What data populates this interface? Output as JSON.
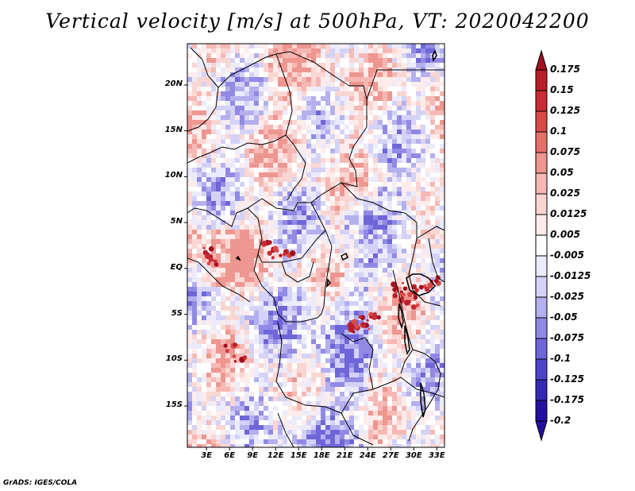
{
  "title": "Vertical velocity [m/s] at 500hPa, VT: 2020042200",
  "credit": "GrADS: IGES/COLA",
  "map": {
    "lat_range": [
      -19.5,
      24.5
    ],
    "lon_range": [
      0.5,
      34
    ],
    "lat_ticks": [
      {
        "value": 20,
        "label": "20N"
      },
      {
        "value": 15,
        "label": "15N"
      },
      {
        "value": 10,
        "label": "10N"
      },
      {
        "value": 5,
        "label": "5N"
      },
      {
        "value": 0,
        "label": "EQ"
      },
      {
        "value": -5,
        "label": "5S"
      },
      {
        "value": -10,
        "label": "10S"
      },
      {
        "value": -15,
        "label": "15S"
      }
    ],
    "lon_ticks": [
      {
        "value": 3,
        "label": "3E"
      },
      {
        "value": 6,
        "label": "6E"
      },
      {
        "value": 9,
        "label": "9E"
      },
      {
        "value": 12,
        "label": "12E"
      },
      {
        "value": 15,
        "label": "15E"
      },
      {
        "value": 18,
        "label": "18E"
      },
      {
        "value": 21,
        "label": "21E"
      },
      {
        "value": 24,
        "label": "24E"
      },
      {
        "value": 27,
        "label": "27E"
      },
      {
        "value": 30,
        "label": "30E"
      },
      {
        "value": 33,
        "label": "33E"
      }
    ]
  },
  "colorbar": [
    {
      "label": "0.175",
      "color": "#a01020"
    },
    {
      "label": "0.15",
      "color": "#b81e28"
    },
    {
      "label": "0.125",
      "color": "#c82c34"
    },
    {
      "label": "0.1",
      "color": "#d84a48"
    },
    {
      "label": "0.075",
      "color": "#e4706a"
    },
    {
      "label": "0.05",
      "color": "#ee9690"
    },
    {
      "label": "0.025",
      "color": "#f6b8b4"
    },
    {
      "label": "0.0125",
      "color": "#fad6d2"
    },
    {
      "label": "0.005",
      "color": "#fdeceb"
    },
    {
      "label": "-0.005",
      "color": "#ffffff"
    },
    {
      "label": "-0.0125",
      "color": "#ecebfb"
    },
    {
      "label": "-0.025",
      "color": "#d4d2f6"
    },
    {
      "label": "-0.05",
      "color": "#b4b0ee"
    },
    {
      "label": "-0.075",
      "color": "#908ae4"
    },
    {
      "label": "-0.1",
      "color": "#6e66d8"
    },
    {
      "label": "-0.125",
      "color": "#4e44c8"
    },
    {
      "label": "-0.175",
      "color": "#3428b4"
    },
    {
      "label": "-0.2",
      "color": "#2410a0"
    }
  ]
}
